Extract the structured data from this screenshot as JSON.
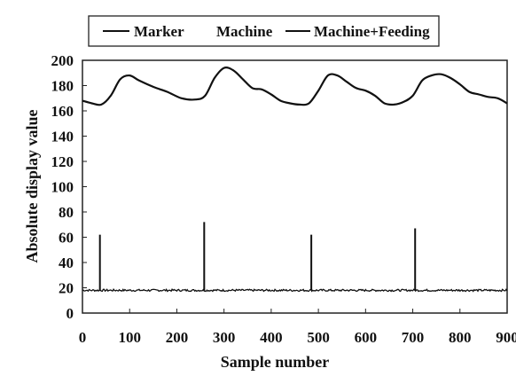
{
  "chart_data": {
    "type": "line",
    "xlabel": "Sample number",
    "ylabel": "Absolute display value",
    "xlim": [
      0,
      900
    ],
    "ylim": [
      0,
      200
    ],
    "xticks": [
      "0",
      "100",
      "200",
      "300",
      "400",
      "500",
      "600",
      "700",
      "800",
      "900"
    ],
    "yticks": [
      "0",
      "20",
      "40",
      "60",
      "80",
      "100",
      "120",
      "140",
      "160",
      "180",
      "200"
    ],
    "grid": false,
    "legend_position": "top",
    "series": [
      {
        "name": "Marker",
        "color": "#111111",
        "type": "spikes",
        "baseline": 18,
        "spikes": [
          {
            "x": 37,
            "y": 62
          },
          {
            "x": 258,
            "y": 72
          },
          {
            "x": 485,
            "y": 62
          },
          {
            "x": 705,
            "y": 67
          }
        ]
      },
      {
        "name": "Machine",
        "color": "#111111",
        "type": "noise",
        "x": [
          0,
          100,
          200,
          300,
          400,
          500,
          600,
          700,
          800,
          900
        ],
        "values": [
          18,
          18,
          18,
          18,
          18,
          18,
          18,
          18,
          18,
          18
        ]
      },
      {
        "name": "Machine+Feeding",
        "color": "#111111",
        "x": [
          0,
          20,
          40,
          60,
          80,
          100,
          120,
          150,
          180,
          210,
          240,
          260,
          280,
          300,
          320,
          340,
          360,
          380,
          400,
          420,
          440,
          460,
          480,
          500,
          520,
          540,
          560,
          580,
          600,
          620,
          640,
          660,
          680,
          700,
          720,
          740,
          760,
          780,
          800,
          820,
          840,
          860,
          880,
          900
        ],
        "values": [
          168,
          166,
          165,
          172,
          185,
          188,
          184,
          179,
          175,
          170,
          169,
          172,
          186,
          194,
          192,
          185,
          178,
          177,
          173,
          168,
          166,
          165,
          166,
          176,
          188,
          188,
          183,
          178,
          176,
          172,
          166,
          165,
          167,
          172,
          184,
          188,
          189,
          186,
          181,
          175,
          173,
          171,
          170,
          166
        ]
      }
    ]
  }
}
